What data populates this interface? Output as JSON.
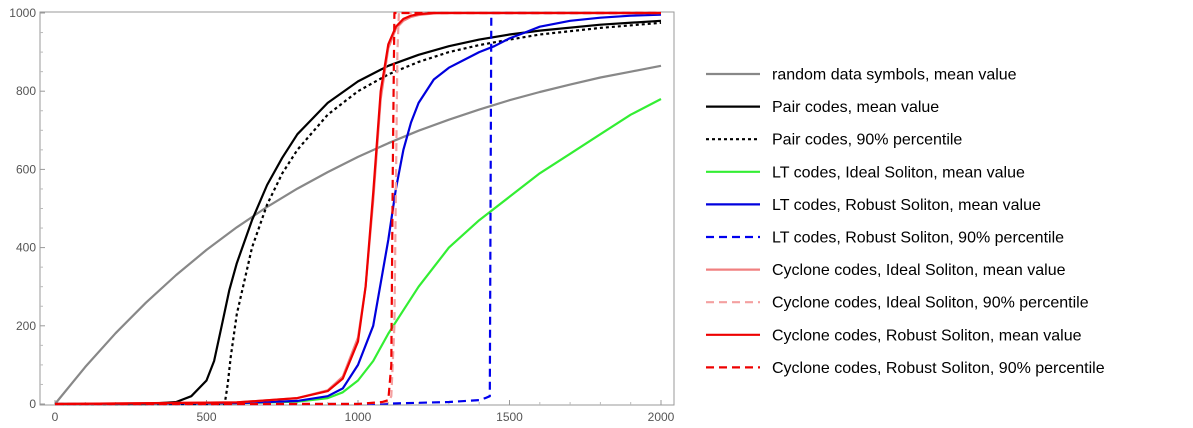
{
  "chart_data": {
    "type": "line",
    "title": "",
    "xlabel": "",
    "ylabel": "",
    "xlim": [
      0,
      2000
    ],
    "ylim": [
      0,
      1000
    ],
    "x_ticks": [
      "0",
      "500",
      "1000",
      "1500",
      "2000"
    ],
    "y_ticks": [
      "0",
      "200",
      "400",
      "600",
      "800",
      "1000"
    ],
    "grid": false,
    "legend_position": "right",
    "series": [
      {
        "name": "random data symbols, mean value",
        "color": "#888888",
        "dash": "solid",
        "x": [
          0,
          100,
          200,
          300,
          400,
          500,
          600,
          700,
          800,
          900,
          1000,
          1100,
          1200,
          1300,
          1400,
          1500,
          1600,
          1700,
          1800,
          1900,
          2000
        ],
        "y": [
          0,
          95,
          181,
          259,
          330,
          394,
          452,
          504,
          551,
          593,
          632,
          667,
          699,
          727,
          753,
          777,
          798,
          817,
          835,
          850,
          865
        ]
      },
      {
        "name": "Pair codes, mean value",
        "color": "#000000",
        "dash": "solid",
        "x": [
          0,
          300,
          400,
          450,
          500,
          525,
          550,
          575,
          600,
          650,
          700,
          750,
          800,
          900,
          1000,
          1100,
          1200,
          1300,
          1400,
          1500,
          1600,
          1800,
          2000
        ],
        "y": [
          0,
          0,
          5,
          20,
          60,
          110,
          200,
          290,
          360,
          470,
          560,
          630,
          690,
          770,
          825,
          865,
          893,
          915,
          932,
          945,
          955,
          970,
          980
        ]
      },
      {
        "name": "Pair codes, 90% percentile",
        "color": "#000000",
        "dash": "dotted",
        "x": [
          0,
          560,
          570,
          580,
          600,
          650,
          700,
          750,
          800,
          900,
          1000,
          1100,
          1200,
          1300,
          1400,
          1500,
          1600,
          1800,
          2000
        ],
        "y": [
          0,
          0,
          50,
          120,
          230,
          400,
          510,
          590,
          650,
          740,
          800,
          843,
          875,
          900,
          918,
          932,
          945,
          962,
          975
        ]
      },
      {
        "name": "LT codes, Ideal Soliton, mean value",
        "color": "#33ee33",
        "dash": "solid",
        "x": [
          0,
          600,
          800,
          900,
          950,
          1000,
          1050,
          1100,
          1150,
          1200,
          1250,
          1300,
          1400,
          1500,
          1600,
          1700,
          1800,
          1900,
          2000
        ],
        "y": [
          0,
          2,
          6,
          15,
          30,
          60,
          110,
          180,
          240,
          300,
          350,
          400,
          470,
          530,
          590,
          640,
          690,
          740,
          780
        ]
      },
      {
        "name": "LT codes, Robust Soliton, mean value",
        "color": "#0000dd",
        "dash": "solid",
        "x": [
          0,
          600,
          800,
          900,
          950,
          1000,
          1050,
          1100,
          1125,
          1150,
          1175,
          1200,
          1250,
          1300,
          1350,
          1400,
          1450,
          1500,
          1550,
          1600,
          1700,
          1800,
          1900,
          2000
        ],
        "y": [
          0,
          2,
          8,
          20,
          40,
          100,
          200,
          420,
          550,
          650,
          720,
          770,
          830,
          860,
          880,
          900,
          915,
          935,
          950,
          965,
          980,
          988,
          993,
          996
        ]
      },
      {
        "name": "LT codes, Robust Soliton, 90% percentile",
        "color": "#0000ee",
        "dash": "dashed",
        "x": [
          0,
          1000,
          1100,
          1200,
          1300,
          1400,
          1420,
          1435,
          1440,
          1450,
          1600,
          2000
        ],
        "y": [
          0,
          0,
          1,
          3,
          5,
          10,
          15,
          20,
          1000,
          1000,
          1000,
          1000
        ]
      },
      {
        "name": "Cyclone codes, Ideal Soliton, mean value",
        "color": "#f08080",
        "dash": "solid",
        "x": [
          0,
          600,
          800,
          900,
          950,
          1000,
          1025,
          1050,
          1075,
          1100,
          1125,
          1150,
          1175,
          1200,
          1250,
          1300,
          2000
        ],
        "y": [
          0,
          4,
          15,
          35,
          70,
          170,
          300,
          520,
          780,
          910,
          960,
          980,
          990,
          995,
          999,
          1000,
          1000
        ]
      },
      {
        "name": "Cyclone codes, Ideal Soliton, 90% percentile",
        "color": "#f4a0a0",
        "dash": "dashed",
        "x": [
          0,
          1000,
          1100,
          1110,
          1120,
          1130,
          1135,
          1140,
          2000
        ],
        "y": [
          0,
          0,
          5,
          20,
          200,
          900,
          1000,
          1000,
          1000
        ]
      },
      {
        "name": "Cyclone codes, Robust Soliton, mean value",
        "color": "#ee0000",
        "dash": "solid",
        "x": [
          0,
          600,
          800,
          900,
          950,
          1000,
          1025,
          1050,
          1075,
          1100,
          1125,
          1150,
          1175,
          1200,
          1250,
          1300,
          2000
        ],
        "y": [
          0,
          4,
          15,
          33,
          65,
          160,
          300,
          540,
          800,
          920,
          965,
          985,
          993,
          997,
          1000,
          1000,
          1000
        ]
      },
      {
        "name": "Cyclone codes, Robust Soliton, 90% percentile",
        "color": "#ee0000",
        "dash": "dashed",
        "x": [
          0,
          1000,
          1080,
          1100,
          1110,
          1115,
          1120,
          1125,
          2000
        ],
        "y": [
          0,
          0,
          5,
          10,
          100,
          600,
          1000,
          1000,
          1000
        ]
      }
    ]
  }
}
